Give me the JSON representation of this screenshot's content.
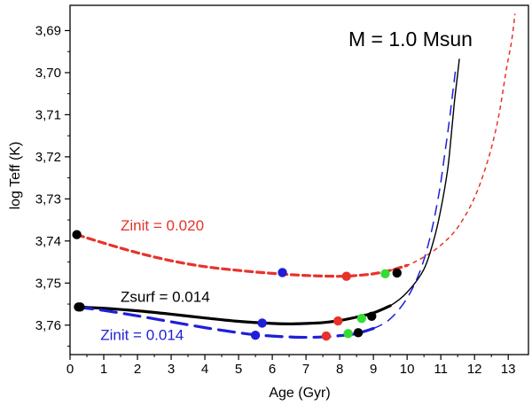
{
  "chart_data": {
    "type": "line",
    "title": "M = 1.0 Msun",
    "xlabel": "Age (Gyr)",
    "ylabel": "log Teff (K)",
    "xlim": [
      0,
      13.6
    ],
    "ylim": [
      3.767,
      3.684
    ],
    "y_inverted": true,
    "grid": false,
    "xticks": [
      0,
      1,
      2,
      3,
      4,
      5,
      6,
      7,
      8,
      9,
      10,
      11,
      12,
      13
    ],
    "xtick_labels": [
      "0",
      "1",
      "2",
      "3",
      "4",
      "5",
      "6",
      "7",
      "8",
      "9",
      "10",
      "11",
      "12",
      "13"
    ],
    "yticks": [
      3.69,
      3.7,
      3.71,
      3.72,
      3.73,
      3.74,
      3.75,
      3.76
    ],
    "ytick_labels": [
      "3,69",
      "3,70",
      "3,71",
      "3,72",
      "3,73",
      "3,74",
      "3,75",
      "3,76"
    ],
    "series": [
      {
        "name": "Zinit = 0.020",
        "color": "#e8322a",
        "style": "dashed",
        "x": [
          0.2,
          1.0,
          2.0,
          3.0,
          4.0,
          5.0,
          6.0,
          7.0,
          8.0,
          8.5,
          9.0,
          9.5,
          10.0,
          10.5,
          11.0,
          11.5,
          12.0,
          12.4,
          12.7,
          12.95,
          13.1,
          13.2
        ],
        "y": [
          3.7385,
          3.7405,
          3.7428,
          3.7447,
          3.7461,
          3.747,
          3.7477,
          3.7482,
          3.7484,
          3.7482,
          3.7478,
          3.747,
          3.7458,
          3.7438,
          3.741,
          3.7368,
          3.7297,
          3.7207,
          3.711,
          3.699,
          3.6925,
          3.686
        ],
        "markers": [
          {
            "x": 0.2,
            "y": 3.7385,
            "color": "#000000"
          },
          {
            "x": 6.3,
            "y": 3.7475,
            "color": "#1f1fd8"
          },
          {
            "x": 8.2,
            "y": 3.7484,
            "color": "#e8322a"
          },
          {
            "x": 9.35,
            "y": 3.7478,
            "color": "#33dd33"
          },
          {
            "x": 9.7,
            "y": 3.7476,
            "color": "#000000"
          }
        ]
      },
      {
        "name": "Zsurf = 0.014",
        "color": "#000000",
        "style": "solid",
        "x": [
          0.2,
          1.0,
          2.0,
          3.0,
          4.0,
          5.0,
          6.0,
          6.5,
          7.0,
          7.5,
          8.0,
          8.5,
          9.0,
          9.5,
          10.0,
          10.5,
          10.8,
          11.0,
          11.2,
          11.3,
          11.4,
          11.5,
          11.55
        ],
        "y": [
          3.7557,
          3.756,
          3.7566,
          3.7574,
          3.7583,
          3.7591,
          3.7596,
          3.7597,
          3.7596,
          3.7594,
          3.7589,
          3.7581,
          3.7571,
          3.7554,
          3.7522,
          3.7467,
          3.7395,
          3.7325,
          3.7232,
          3.7157,
          3.7072,
          3.7003,
          3.6967
        ],
        "markers": [
          {
            "x": 0.25,
            "y": 3.7557,
            "color": "#000000"
          },
          {
            "x": 5.7,
            "y": 3.7595,
            "color": "#1f1fd8"
          },
          {
            "x": 7.95,
            "y": 3.759,
            "color": "#e8322a"
          },
          {
            "x": 8.65,
            "y": 3.7584,
            "color": "#33dd33"
          },
          {
            "x": 8.95,
            "y": 3.7579,
            "color": "#000000"
          }
        ]
      },
      {
        "name": "Zinit = 0.014",
        "color": "#1f1fd8",
        "style": "dashed",
        "x": [
          0.2,
          1.0,
          2.0,
          3.0,
          4.0,
          5.0,
          5.5,
          6.0,
          6.5,
          7.0,
          7.5,
          8.0,
          8.5,
          9.0,
          9.5,
          10.0,
          10.4,
          10.7,
          10.95,
          11.1,
          11.25,
          11.35,
          11.45
        ],
        "y": [
          3.7557,
          3.7565,
          3.7578,
          3.7592,
          3.7606,
          3.7618,
          3.7623,
          3.7626,
          3.7628,
          3.7629,
          3.7628,
          3.7625,
          3.762,
          3.7608,
          3.7585,
          3.7536,
          3.7468,
          3.7385,
          3.7285,
          3.7203,
          3.7116,
          3.705,
          3.6985
        ],
        "markers": [
          {
            "x": 0.3,
            "y": 3.7557,
            "color": "#000000"
          },
          {
            "x": 5.5,
            "y": 3.7624,
            "color": "#1f1fd8"
          },
          {
            "x": 7.6,
            "y": 3.7626,
            "color": "#e8322a"
          },
          {
            "x": 8.25,
            "y": 3.762,
            "color": "#33dd33"
          },
          {
            "x": 8.55,
            "y": 3.7618,
            "color": "#000000"
          }
        ]
      }
    ],
    "labels": [
      {
        "text": "Zinit = 0.020",
        "x": 1.5,
        "y": 3.7375,
        "color": "#e8322a"
      },
      {
        "text": "Zsurf = 0.014",
        "x": 1.5,
        "y": 3.7545,
        "color": "#000000"
      },
      {
        "text": "Zinit = 0.014",
        "x": 0.9,
        "y": 3.7635,
        "color": "#1f1fd8"
      }
    ]
  }
}
